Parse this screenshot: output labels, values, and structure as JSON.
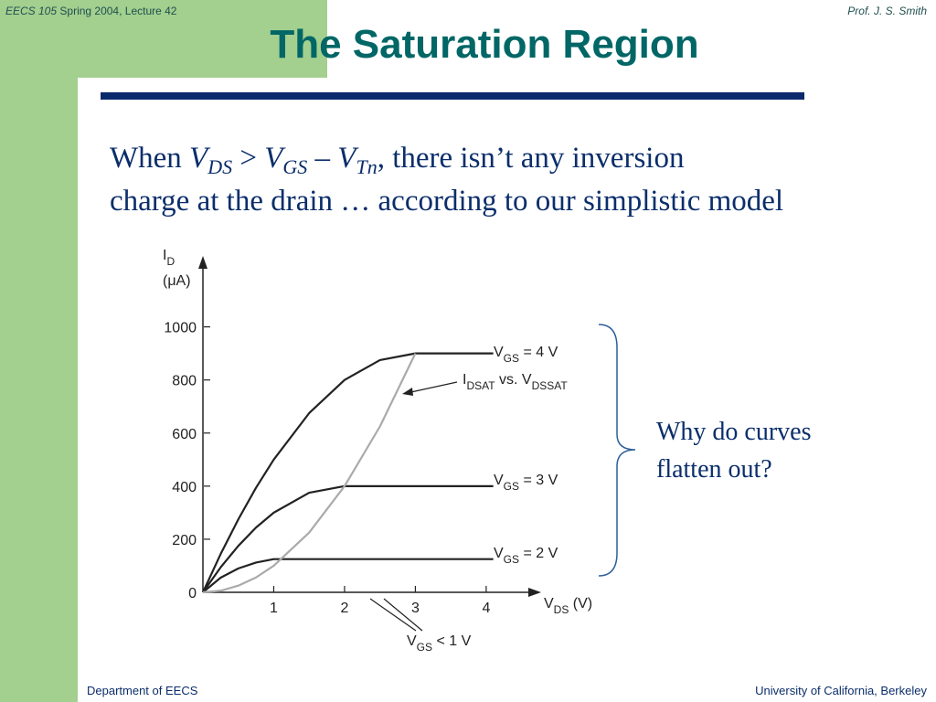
{
  "header": {
    "course": "EECS 105",
    "lecture": "Spring 2004, Lecture 42",
    "author": "Prof. J. S. Smith"
  },
  "title": "The Saturation Region",
  "body": {
    "line1": [
      "When ",
      "V",
      "DS",
      " > ",
      "V",
      "GS",
      " – ",
      "V",
      "Tn",
      ", there isn’t any inversion"
    ],
    "line2": "charge at the drain … according to our simplistic model"
  },
  "side": {
    "lines": [
      "Why do curves",
      "flatten out?"
    ]
  },
  "footer": {
    "left": "Department of EECS",
    "right": "University of California, Berkeley"
  },
  "chart_data": {
    "type": "line",
    "y_label": [
      "I",
      "D",
      "(μA)"
    ],
    "x_label": [
      "V",
      "DS",
      " (V)"
    ],
    "x": [
      0,
      0.25,
      0.5,
      0.75,
      1,
      1.5,
      2,
      2.5,
      3,
      3.5,
      4.1
    ],
    "xlim": [
      0,
      4.75
    ],
    "ylim": [
      0,
      1250
    ],
    "xticks": [
      1,
      2,
      3,
      4
    ],
    "yticks": [
      0,
      200,
      400,
      600,
      800,
      1000
    ],
    "series": [
      {
        "label": [
          "V",
          "GS",
          " = 4 V"
        ],
        "color": "#222222",
        "values": [
          0,
          144,
          275,
          394,
          500,
          675,
          800,
          875,
          900,
          900,
          900
        ]
      },
      {
        "label": [
          "V",
          "GS",
          " = 3 V"
        ],
        "color": "#222222",
        "values": [
          0,
          94,
          175,
          244,
          300,
          375,
          400,
          400,
          400,
          400,
          400
        ]
      },
      {
        "label": [
          "V",
          "GS",
          " = 2 V"
        ],
        "color": "#222222",
        "values": [
          0,
          55,
          90,
          112,
          125,
          125,
          125,
          125,
          125,
          125,
          125
        ]
      },
      {
        "label": [
          "I",
          "D",
          "SAT",
          " vs. V",
          "DS",
          "SAT"
        ],
        "color": "#aaaaaa",
        "values": [
          0,
          6,
          25,
          56,
          100,
          225,
          400,
          625,
          900,
          null,
          null
        ]
      }
    ],
    "annotation": [
      "V",
      "GS",
      " < 1 V"
    ]
  }
}
